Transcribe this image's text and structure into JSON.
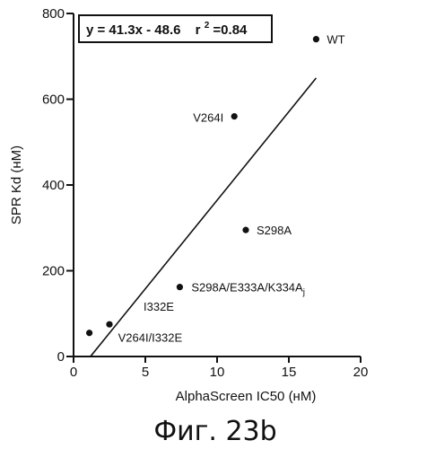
{
  "chart_data": {
    "type": "scatter",
    "xlabel": "AlphaScreen IC50 (нМ)",
    "ylabel": "SPR Kd (нМ)",
    "xlim": [
      0,
      20
    ],
    "ylim": [
      0,
      800
    ],
    "x_ticks": [
      "0",
      "5",
      "10",
      "15",
      "20"
    ],
    "y_ticks": [
      "0",
      "200",
      "400",
      "600",
      "800"
    ],
    "grid": false,
    "points": [
      {
        "label": "WT",
        "x": 16.9,
        "y": 740
      },
      {
        "label": "V264I",
        "x": 11.2,
        "y": 560
      },
      {
        "label": "S298A",
        "x": 12.0,
        "y": 295
      },
      {
        "label": "S298A/E333A/K334A",
        "label_sub": "j",
        "x": 7.4,
        "y": 162
      },
      {
        "label": "I332E",
        "x": 2.5,
        "y": 75
      },
      {
        "label": "V264I/I332E",
        "x": 1.1,
        "y": 55
      }
    ],
    "fit_line": {
      "slope": 41.3,
      "intercept": -48.6,
      "x_start": 1.18,
      "x_end": 16.9
    },
    "annotation": {
      "equation": "y = 41.3x - 48.6",
      "r2_label": "r",
      "r2_sup": "2",
      "r2_value": "=0.84"
    }
  },
  "caption": "Фиг. 23b"
}
